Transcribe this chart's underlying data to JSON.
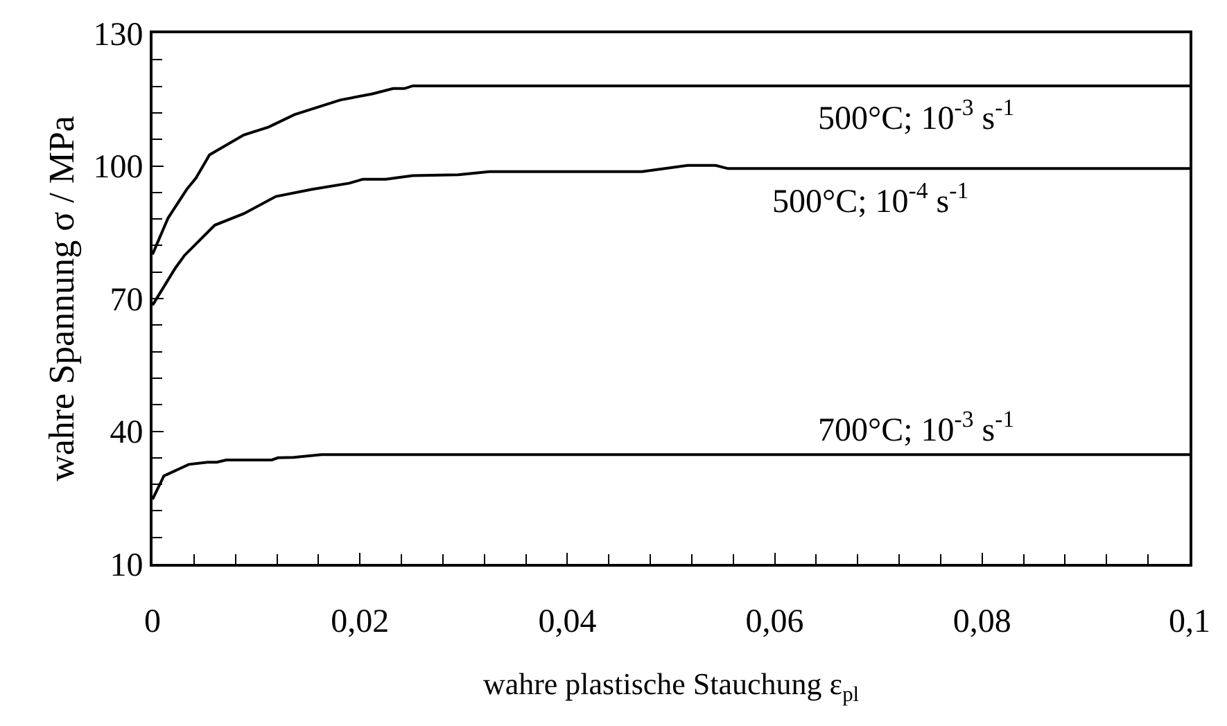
{
  "chart_data": {
    "type": "line",
    "xlabel": "wahre plastische Stauchung ε$_{pl}$",
    "ylabel": "wahre Spannung σ / MPa",
    "xlim": [
      0,
      0.1
    ],
    "xticks": [
      0,
      {
        "value": 0.02,
        "label": "0,02"
      },
      {
        "value": 0.04,
        "label": "0,04"
      },
      {
        "value": 0.06,
        "label": "0,06"
      },
      {
        "value": 0.08,
        "label": "0,08"
      },
      {
        "value": 0.1,
        "label": "0,1"
      }
    ],
    "ylim": [
      10,
      130
    ],
    "yticks": [
      10,
      40,
      70,
      100,
      130
    ],
    "legend": false,
    "marker": "none",
    "line_style": "solid",
    "series": [
      {
        "name": "500°C; 10$^{-3}$ s$^{-1}$",
        "color": "#000000",
        "x": [
          0,
          0.0015,
          0.0033,
          0.0042,
          0.0055,
          0.0088,
          0.0112,
          0.0137,
          0.0181,
          0.0212,
          0.0232,
          0.0243,
          0.0251,
          0.1
        ],
        "values": [
          80,
          88.2,
          94.7,
          97.3,
          102.5,
          107,
          108.8,
          111.6,
          114.9,
          116.3,
          117.5,
          117.5,
          118.1,
          118.1
        ]
      },
      {
        "name": "500°C; 10$^{-4}$ s$^{-1}$",
        "color": "#000000",
        "x": [
          0,
          0.0022,
          0.0031,
          0.006,
          0.0088,
          0.0119,
          0.0154,
          0.019,
          0.0203,
          0.0225,
          0.0251,
          0.0295,
          0.0325,
          0.0472,
          0.0516,
          0.0543,
          0.0555,
          0.1
        ],
        "values": [
          68.5,
          76.9,
          79.8,
          86.6,
          89.2,
          93.1,
          94.7,
          96.1,
          97,
          97,
          97.8,
          98,
          98.7,
          98.7,
          100.1,
          100.1,
          99.4,
          99.4
        ]
      },
      {
        "name": "700°C; 10$^{-3}$ s$^{-1}$",
        "color": "#000000",
        "x": [
          0,
          0.0011,
          0.0035,
          0.0053,
          0.0062,
          0.0071,
          0.0115,
          0.0121,
          0.0136,
          0.0163,
          0.1
        ],
        "values": [
          24.6,
          29.9,
          32.5,
          33,
          33,
          33.5,
          33.5,
          34,
          34.1,
          34.7,
          34.7
        ]
      }
    ]
  }
}
